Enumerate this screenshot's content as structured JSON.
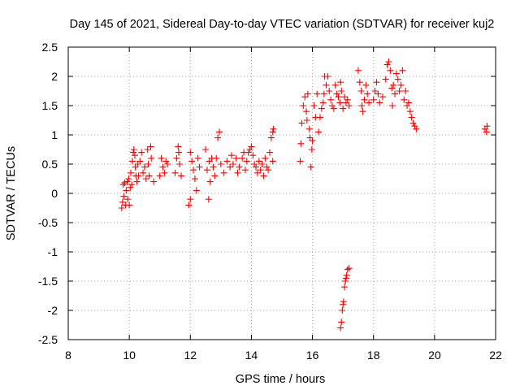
{
  "chart_data": {
    "type": "scatter",
    "title": "Day 145 of 2021, Sidereal Day-to-day VTEC variation (SDTVAR) for receiver kuj2",
    "xlabel": "GPS time / hours",
    "ylabel": "SDTVAR / TECUs",
    "xlim": [
      8,
      22
    ],
    "ylim": [
      -2.5,
      2.5
    ],
    "xticks": [
      8,
      10,
      12,
      14,
      16,
      18,
      20,
      22
    ],
    "xtick_labels": [
      "8",
      "10",
      "12",
      "14",
      "16",
      "18",
      "20",
      "22"
    ],
    "yticks": [
      -2.5,
      -2,
      -1.5,
      -1,
      -0.5,
      0,
      0.5,
      1,
      1.5,
      2,
      2.5
    ],
    "ytick_labels": [
      "-2.5",
      "-2",
      "-1.5",
      "-1",
      "-0.5",
      "0",
      "0.5",
      "1",
      "1.5",
      "2",
      "2.5"
    ],
    "grid": true,
    "marker": "+",
    "color": "#ff0000",
    "series": [
      {
        "name": "SDTVAR",
        "points": [
          [
            9.75,
            -0.25
          ],
          [
            9.78,
            -0.15
          ],
          [
            9.8,
            0.15
          ],
          [
            9.82,
            -0.05
          ],
          [
            9.85,
            0.18
          ],
          [
            9.88,
            -0.2
          ],
          [
            9.9,
            0.05
          ],
          [
            9.93,
            0.2
          ],
          [
            9.95,
            -0.1
          ],
          [
            9.98,
            0.25
          ],
          [
            10.0,
            -0.2
          ],
          [
            10.03,
            0.1
          ],
          [
            10.05,
            0.35
          ],
          [
            10.08,
            0.15
          ],
          [
            10.1,
            0.55
          ],
          [
            10.13,
            0.7
          ],
          [
            10.15,
            0.75
          ],
          [
            10.18,
            0.65
          ],
          [
            10.2,
            0.45
          ],
          [
            10.22,
            0.3
          ],
          [
            10.25,
            0.2
          ],
          [
            10.28,
            0.5
          ],
          [
            10.3,
            0.3
          ],
          [
            10.35,
            0.55
          ],
          [
            10.4,
            0.7
          ],
          [
            10.45,
            0.35
          ],
          [
            10.5,
            0.45
          ],
          [
            10.55,
            0.25
          ],
          [
            10.6,
            0.75
          ],
          [
            10.62,
            0.5
          ],
          [
            10.65,
            0.3
          ],
          [
            10.7,
            0.8
          ],
          [
            10.72,
            0.6
          ],
          [
            10.8,
            0.2
          ],
          [
            11.0,
            0.3
          ],
          [
            11.05,
            0.6
          ],
          [
            11.1,
            0.45
          ],
          [
            11.15,
            0.35
          ],
          [
            11.2,
            0.55
          ],
          [
            11.25,
            0.5
          ],
          [
            11.5,
            0.35
          ],
          [
            11.55,
            0.6
          ],
          [
            11.6,
            0.8
          ],
          [
            11.62,
            0.7
          ],
          [
            11.65,
            0.5
          ],
          [
            11.7,
            0.3
          ],
          [
            11.95,
            -0.2
          ],
          [
            12.0,
            -0.1
          ],
          [
            12.0,
            0.7
          ],
          [
            12.05,
            0.55
          ],
          [
            12.1,
            0.4
          ],
          [
            12.15,
            0.25
          ],
          [
            12.2,
            0.05
          ],
          [
            12.25,
            0.6
          ],
          [
            12.3,
            0.45
          ],
          [
            12.5,
            0.75
          ],
          [
            12.55,
            0.4
          ],
          [
            12.6,
            -0.1
          ],
          [
            12.62,
            0.55
          ],
          [
            12.65,
            0.2
          ],
          [
            12.7,
            0.6
          ],
          [
            12.75,
            0.45
          ],
          [
            12.8,
            0.3
          ],
          [
            12.85,
            0.6
          ],
          [
            12.9,
            0.95
          ],
          [
            12.95,
            1.05
          ],
          [
            13.0,
            0.5
          ],
          [
            13.1,
            0.35
          ],
          [
            13.2,
            0.55
          ],
          [
            13.3,
            0.45
          ],
          [
            13.35,
            0.65
          ],
          [
            13.4,
            0.5
          ],
          [
            13.5,
            0.6
          ],
          [
            13.55,
            0.35
          ],
          [
            13.6,
            0.45
          ],
          [
            13.7,
            0.6
          ],
          [
            13.75,
            0.7
          ],
          [
            13.8,
            0.4
          ],
          [
            13.85,
            0.55
          ],
          [
            13.9,
            0.7
          ],
          [
            13.95,
            0.75
          ],
          [
            14.0,
            0.8
          ],
          [
            14.05,
            0.65
          ],
          [
            14.1,
            0.5
          ],
          [
            14.15,
            0.45
          ],
          [
            14.2,
            0.35
          ],
          [
            14.25,
            0.55
          ],
          [
            14.3,
            0.4
          ],
          [
            14.35,
            0.5
          ],
          [
            14.4,
            0.3
          ],
          [
            14.45,
            0.6
          ],
          [
            14.5,
            0.45
          ],
          [
            14.55,
            0.4
          ],
          [
            14.6,
            0.7
          ],
          [
            14.65,
            0.95
          ],
          [
            14.7,
            1.05
          ],
          [
            14.72,
            1.1
          ],
          [
            14.7,
            0.55
          ],
          [
            15.6,
            0.55
          ],
          [
            15.62,
            0.85
          ],
          [
            15.65,
            1.2
          ],
          [
            15.7,
            1.5
          ],
          [
            15.75,
            1.65
          ],
          [
            15.8,
            1.4
          ],
          [
            15.82,
            1.25
          ],
          [
            15.85,
            1.7
          ],
          [
            15.9,
            1.1
          ],
          [
            15.92,
            0.95
          ],
          [
            15.95,
            0.45
          ],
          [
            15.98,
            0.75
          ],
          [
            16.0,
            0.9
          ],
          [
            16.05,
            1.5
          ],
          [
            16.1,
            1.3
          ],
          [
            16.15,
            1.7
          ],
          [
            16.2,
            1.05
          ],
          [
            16.25,
            1.3
          ],
          [
            16.3,
            1.45
          ],
          [
            16.35,
            1.55
          ],
          [
            16.38,
            1.7
          ],
          [
            16.4,
            2.0
          ],
          [
            16.45,
            1.85
          ],
          [
            16.5,
            2.0
          ],
          [
            16.55,
            1.75
          ],
          [
            16.6,
            1.6
          ],
          [
            16.65,
            1.5
          ],
          [
            16.7,
            1.45
          ],
          [
            16.75,
            1.85
          ],
          [
            16.8,
            1.7
          ],
          [
            16.85,
            1.65
          ],
          [
            16.9,
            1.55
          ],
          [
            16.92,
            1.9
          ],
          [
            16.95,
            1.75
          ],
          [
            17.0,
            1.45
          ],
          [
            17.05,
            1.65
          ],
          [
            17.1,
            1.55
          ],
          [
            17.15,
            1.6
          ],
          [
            17.2,
            1.5
          ],
          [
            16.92,
            -2.3
          ],
          [
            16.95,
            -2.2
          ],
          [
            16.98,
            -2.0
          ],
          [
            17.0,
            -1.9
          ],
          [
            17.02,
            -1.85
          ],
          [
            17.05,
            -1.6
          ],
          [
            17.08,
            -1.5
          ],
          [
            17.1,
            -1.45
          ],
          [
            17.12,
            -1.4
          ],
          [
            17.15,
            -1.3
          ],
          [
            17.2,
            -1.28
          ],
          [
            17.5,
            2.1
          ],
          [
            17.55,
            1.9
          ],
          [
            17.6,
            1.75
          ],
          [
            17.62,
            1.5
          ],
          [
            17.65,
            1.4
          ],
          [
            17.7,
            1.6
          ],
          [
            17.75,
            1.85
          ],
          [
            17.8,
            1.7
          ],
          [
            17.85,
            1.55
          ],
          [
            18.0,
            1.6
          ],
          [
            18.05,
            1.75
          ],
          [
            18.1,
            1.9
          ],
          [
            18.15,
            1.7
          ],
          [
            18.2,
            1.55
          ],
          [
            18.3,
            1.65
          ],
          [
            18.4,
            1.95
          ],
          [
            18.45,
            2.2
          ],
          [
            18.5,
            2.25
          ],
          [
            18.55,
            2.1
          ],
          [
            18.6,
            1.8
          ],
          [
            18.62,
            1.5
          ],
          [
            18.65,
            1.85
          ],
          [
            18.7,
            1.7
          ],
          [
            18.75,
            2.05
          ],
          [
            18.8,
            1.95
          ],
          [
            18.85,
            1.75
          ],
          [
            18.9,
            1.85
          ],
          [
            18.95,
            2.1
          ],
          [
            19.0,
            1.6
          ],
          [
            19.05,
            1.75
          ],
          [
            19.1,
            1.5
          ],
          [
            19.15,
            1.55
          ],
          [
            19.2,
            1.4
          ],
          [
            19.25,
            1.3
          ],
          [
            19.3,
            1.2
          ],
          [
            19.35,
            1.15
          ],
          [
            19.4,
            1.1
          ],
          [
            21.65,
            1.1
          ],
          [
            21.7,
            1.05
          ],
          [
            21.72,
            1.15
          ]
        ]
      }
    ]
  }
}
